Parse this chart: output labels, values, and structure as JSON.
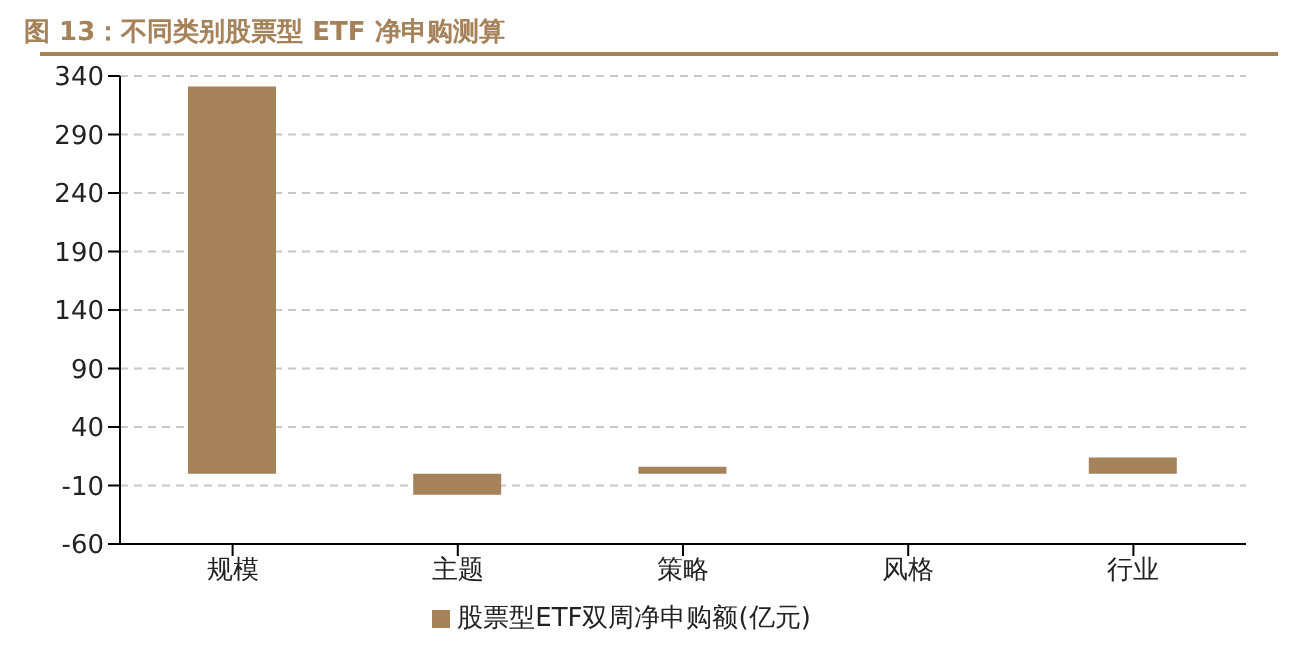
{
  "chart_data": {
    "type": "bar",
    "title": "图 13：不同类别股票型 ETF 净申购测算",
    "categories": [
      "规模",
      "主题",
      "策略",
      "风格",
      "行业"
    ],
    "series": [
      {
        "name": "股票型ETF双周净申购额(亿元)",
        "color": "#a5825a",
        "values": [
          331,
          -18,
          6,
          0,
          14
        ]
      }
    ],
    "ylim": [
      -60,
      340
    ],
    "yticks": [
      -60,
      -10,
      40,
      90,
      140,
      190,
      240,
      290,
      340
    ],
    "grid": "y",
    "legend": "bottom"
  }
}
